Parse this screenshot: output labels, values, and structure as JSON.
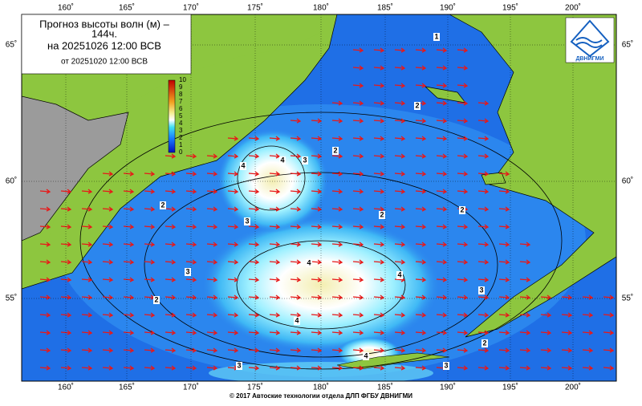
{
  "header": {
    "title_line1": "Прогноз высоты волн (м) –",
    "title_line2": "144ч.",
    "forecast_time": "на 20251026 12:00 ВСВ",
    "issued_time": "от 20251020 12:00 ВСВ"
  },
  "logo": {
    "text": "ДВНИГМИ"
  },
  "axes": {
    "longitudes": [
      "160˚",
      "165˚",
      "170˚",
      "175˚",
      "180˚",
      "185˚",
      "190˚",
      "195˚",
      "200˚"
    ],
    "latitudes": [
      "65˚",
      "60˚",
      "55˚"
    ]
  },
  "colorbar": {
    "ticks": [
      "10",
      "9",
      "8",
      "7",
      "6",
      "5",
      "4",
      "3",
      "2",
      "1",
      "0"
    ]
  },
  "contours": {
    "labels": [
      "1",
      "2",
      "2",
      "3",
      "4",
      "4",
      "2",
      "3",
      "2",
      "2",
      "4",
      "4",
      "3",
      "3",
      "4",
      "2",
      "4",
      "2",
      "3",
      "3"
    ]
  },
  "footer": {
    "text": "© 2017 Автоские технологии отдела ДЛП ФГБУ ДВНИГМИ"
  }
}
